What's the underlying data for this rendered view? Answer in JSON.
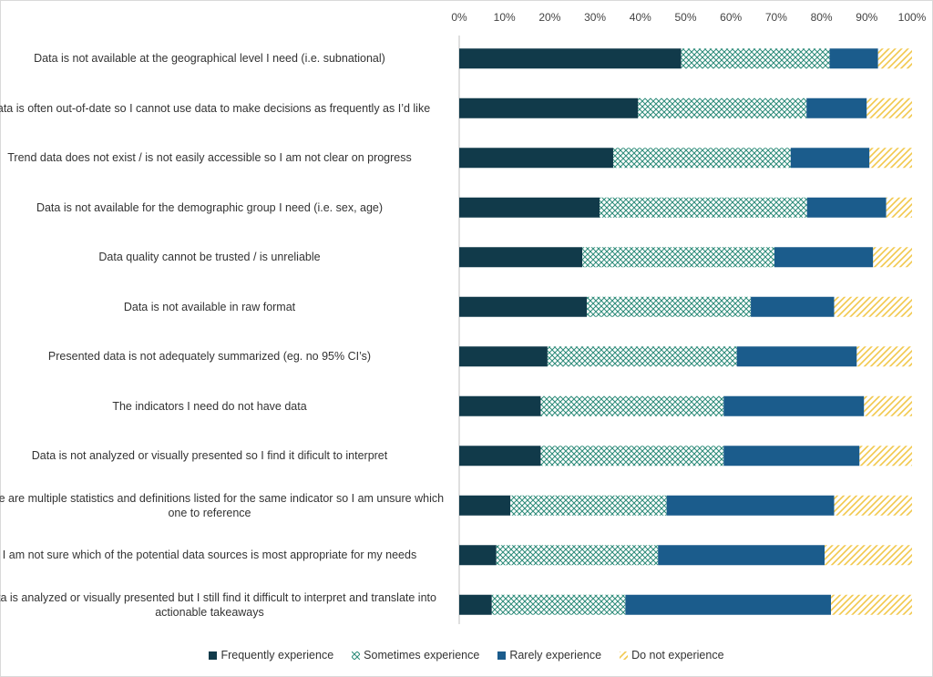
{
  "chart_data": {
    "type": "bar",
    "orientation": "horizontal",
    "stacked": "percent",
    "title": "",
    "xlabel": "",
    "ylabel": "",
    "xlim": [
      0,
      100
    ],
    "x_ticks": [
      "0%",
      "10%",
      "20%",
      "30%",
      "40%",
      "50%",
      "60%",
      "70%",
      "80%",
      "90%",
      "100%"
    ],
    "x_axis_position": "top",
    "grid": false,
    "legend_position": "bottom",
    "categories": [
      "Data is not available at the geographical level I need (i.e. subnational)",
      "Data is often out-of-date so I cannot use data to make decisions as frequently as I’d like",
      "Trend data does not exist / is not easily accessible so I am not clear on progress",
      "Data is not available for the demographic group I need (i.e. sex, age)",
      "Data quality cannot be trusted / is unreliable",
      "Data is not available in raw format",
      "Presented data is not adequately summarized (eg. no 95% CI’s)",
      "The indicators I need do not have data",
      "Data is not analyzed or visually presented so I find it dificult to interpret",
      "There are multiple statistics and definitions listed for the same indicator so I am unsure which one to reference",
      "I am not sure which of the potential data sources is most appropriate for my needs",
      "Data is analyzed or visually presented but I still find it difficult to interpret and translate into actionable takeaways"
    ],
    "series": [
      {
        "name": "Frequently experience",
        "color": "#113a4a",
        "pattern": "solid",
        "values": [
          49,
          39.5,
          34,
          31,
          27.2,
          28.2,
          19.5,
          18,
          18,
          11.3,
          8.2,
          7.2
        ]
      },
      {
        "name": "Sometimes experience",
        "color": "#2a8a78",
        "pattern": "crosshatch",
        "values": [
          32.8,
          37.2,
          39.2,
          45.8,
          42.4,
          36.2,
          41.8,
          40.4,
          40.4,
          34.5,
          35.7,
          29.5
        ]
      },
      {
        "name": "Rarely experience",
        "color": "#1b5c8c",
        "pattern": "solid",
        "values": [
          10.7,
          13.3,
          17.4,
          17.5,
          21.8,
          18.4,
          26.5,
          31,
          30,
          37,
          36.8,
          45.4
        ]
      },
      {
        "name": "Do not experience",
        "color": "#f2c84b",
        "pattern": "diagonal",
        "values": [
          7.5,
          10,
          9.4,
          5.7,
          8.6,
          17.2,
          12.2,
          10.6,
          11.6,
          17.2,
          19.3,
          17.9
        ]
      }
    ]
  }
}
